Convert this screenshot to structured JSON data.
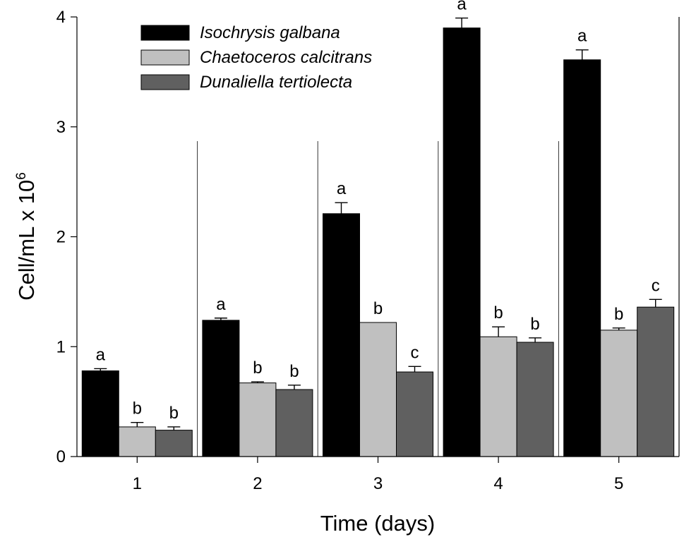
{
  "chart_data": {
    "type": "bar",
    "xlabel": "Time (days)",
    "ylabel": "Cell/mL x 10",
    "ylabel_superscript": "6",
    "ylim": [
      0,
      4
    ],
    "yticks": [
      "0",
      "1",
      "2",
      "3",
      "4"
    ],
    "categories": [
      "1",
      "2",
      "3",
      "4",
      "5"
    ],
    "legend_position": "top-left",
    "grid": false,
    "series": [
      {
        "name": "Isochrysis galbana",
        "color": "#000000",
        "values": [
          0.78,
          1.24,
          2.21,
          3.9,
          3.61
        ],
        "errors": [
          0.02,
          0.02,
          0.1,
          0.09,
          0.09
        ],
        "labels": [
          "a",
          "a",
          "a",
          "a",
          "a"
        ]
      },
      {
        "name": "Chaetoceros calcitrans",
        "color": "#c0c0c0",
        "values": [
          0.27,
          0.67,
          1.22,
          1.09,
          1.15
        ],
        "errors": [
          0.04,
          0.01,
          0.0,
          0.09,
          0.02
        ],
        "labels": [
          "b",
          "b",
          "b",
          "b",
          "b"
        ]
      },
      {
        "name": "Dunaliella tertiolecta",
        "color": "#606060",
        "values": [
          0.24,
          0.61,
          0.77,
          1.04,
          1.36
        ],
        "errors": [
          0.03,
          0.04,
          0.05,
          0.04,
          0.07
        ],
        "labels": [
          "b",
          "b",
          "c",
          "b",
          "c"
        ]
      }
    ]
  }
}
